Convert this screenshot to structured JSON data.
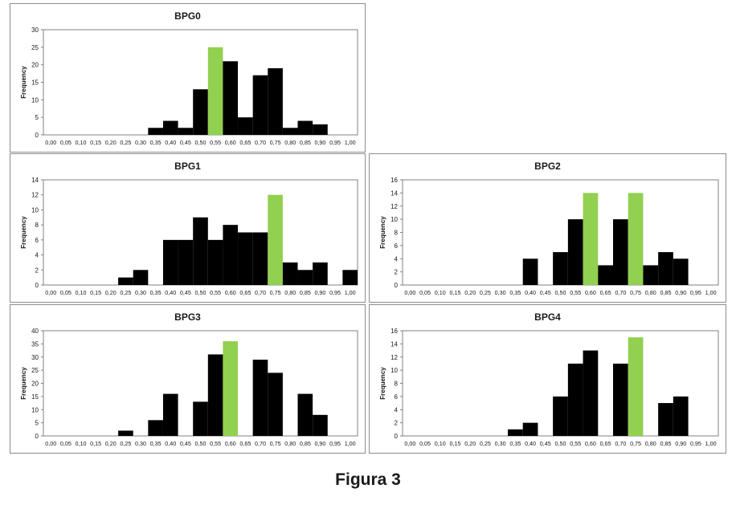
{
  "figure_caption": "Figura 3",
  "colors": {
    "bar": "#000000",
    "highlight": "#92d050",
    "axis": "#808080"
  },
  "chart_data": [
    {
      "type": "bar",
      "title": "BPG0",
      "ylabel": "Frequency",
      "categories": [
        "0,00",
        "0,05",
        "0,10",
        "0,15",
        "0,20",
        "0,25",
        "0,30",
        "0,35",
        "0,40",
        "0,45",
        "0,50",
        "0,55",
        "0,60",
        "0,65",
        "0,70",
        "0,75",
        "0,80",
        "0,85",
        "0,90",
        "0,95",
        "1,00"
      ],
      "values": [
        0,
        0,
        0,
        0,
        0,
        0,
        0,
        2,
        4,
        2,
        13,
        25,
        21,
        5,
        17,
        19,
        2,
        4,
        3,
        0,
        0
      ],
      "highlight": [
        "0,55"
      ],
      "ylim": [
        0,
        30
      ],
      "yticks": [
        0,
        5,
        10,
        15,
        20,
        25,
        30
      ]
    },
    {
      "type": "bar",
      "title": "BPG1",
      "ylabel": "Frequency",
      "categories": [
        "0,00",
        "0,05",
        "0,10",
        "0,15",
        "0,20",
        "0,25",
        "0,30",
        "0,35",
        "0,40",
        "0,45",
        "0,50",
        "0,55",
        "0,60",
        "0,65",
        "0,70",
        "0,75",
        "0,80",
        "0,85",
        "0,90",
        "0,95",
        "1,00"
      ],
      "values": [
        0,
        0,
        0,
        0,
        0,
        1,
        2,
        0,
        6,
        6,
        9,
        6,
        8,
        7,
        7,
        12,
        3,
        2,
        3,
        0,
        2
      ],
      "highlight": [
        "0,75"
      ],
      "ylim": [
        0,
        14
      ],
      "yticks": [
        0,
        2,
        4,
        6,
        8,
        10,
        12,
        14
      ]
    },
    {
      "type": "bar",
      "title": "BPG2",
      "ylabel": "Frequency",
      "categories": [
        "0,00",
        "0,05",
        "0,10",
        "0,15",
        "0,20",
        "0,25",
        "0,30",
        "0,35",
        "0,40",
        "0,45",
        "0,50",
        "0,55",
        "0,60",
        "0,65",
        "0,70",
        "0,75",
        "0,80",
        "0,85",
        "0,90",
        "0,95",
        "1,00"
      ],
      "values": [
        0,
        0,
        0,
        0,
        0,
        0,
        0,
        0,
        4,
        0,
        5,
        10,
        14,
        3,
        10,
        14,
        3,
        5,
        4,
        0,
        0
      ],
      "highlight": [
        "0,60",
        "0,75"
      ],
      "ylim": [
        0,
        16
      ],
      "yticks": [
        0,
        2,
        4,
        6,
        8,
        10,
        12,
        14,
        16
      ]
    },
    {
      "type": "bar",
      "title": "BPG3",
      "ylabel": "Frequency",
      "categories": [
        "0,00",
        "0,05",
        "0,10",
        "0,15",
        "0,20",
        "0,25",
        "0,30",
        "0,35",
        "0,40",
        "0,45",
        "0,50",
        "0,55",
        "0,60",
        "0,65",
        "0,70",
        "0,75",
        "0,80",
        "0,85",
        "0,90",
        "0,95",
        "1,00"
      ],
      "values": [
        0,
        0,
        0,
        0,
        0,
        2,
        0,
        6,
        16,
        0,
        13,
        31,
        36,
        0,
        29,
        24,
        0,
        16,
        8,
        0,
        0
      ],
      "highlight": [
        "0,60"
      ],
      "ylim": [
        0,
        40
      ],
      "yticks": [
        0,
        5,
        10,
        15,
        20,
        25,
        30,
        35,
        40
      ]
    },
    {
      "type": "bar",
      "title": "BPG4",
      "ylabel": "Frequency",
      "categories": [
        "0,00",
        "0,05",
        "0,10",
        "0,15",
        "0,20",
        "0,25",
        "0,30",
        "0,35",
        "0,40",
        "0,45",
        "0,50",
        "0,55",
        "0,60",
        "0,65",
        "0,70",
        "0,75",
        "0,80",
        "0,85",
        "0,90",
        "0,95",
        "1,00"
      ],
      "values": [
        0,
        0,
        0,
        0,
        0,
        0,
        0,
        1,
        2,
        0,
        6,
        11,
        13,
        0,
        11,
        15,
        0,
        5,
        6,
        0,
        0
      ],
      "highlight": [
        "0,75"
      ],
      "ylim": [
        0,
        16
      ],
      "yticks": [
        0,
        2,
        4,
        6,
        8,
        10,
        12,
        14,
        16
      ]
    }
  ]
}
